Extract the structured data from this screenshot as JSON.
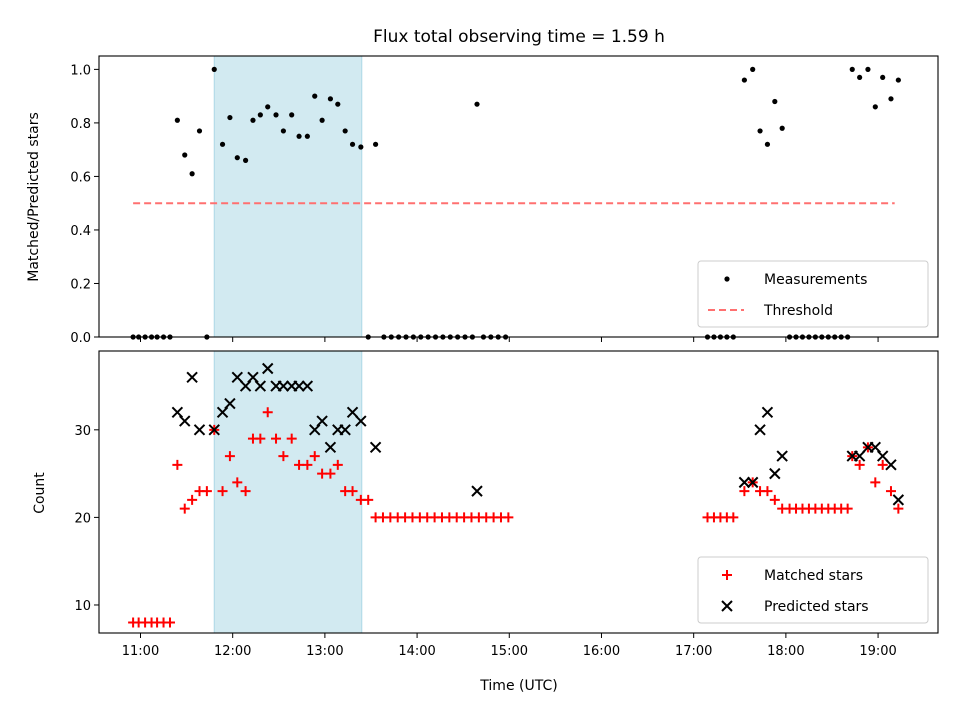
{
  "chart_data": [
    {
      "type": "scatter",
      "title": "Flux total observing time = 1.59 h",
      "ylabel": "Matched/Predicted stars",
      "xlabel": "",
      "xlim": [
        10.55,
        19.65
      ],
      "ylim": [
        0.0,
        1.05
      ],
      "yticks": [
        0.0,
        0.2,
        0.4,
        0.6,
        0.8,
        1.0
      ],
      "ytick_labels": [
        "0.0",
        "0.2",
        "0.4",
        "0.6",
        "0.8",
        "1.0"
      ],
      "shaded_region": [
        11.8,
        13.4
      ],
      "legend_position": "bottom-right",
      "series": [
        {
          "name": "Measurements",
          "marker": "dot",
          "color": "#000000",
          "points": [
            [
              10.92,
              0.0
            ],
            [
              10.98,
              0.0
            ],
            [
              11.05,
              0.0
            ],
            [
              11.12,
              0.0
            ],
            [
              11.18,
              0.0
            ],
            [
              11.25,
              0.0
            ],
            [
              11.32,
              0.0
            ],
            [
              11.4,
              0.81
            ],
            [
              11.48,
              0.68
            ],
            [
              11.56,
              0.61
            ],
            [
              11.64,
              0.77
            ],
            [
              11.72,
              0.0
            ],
            [
              11.8,
              1.0
            ],
            [
              11.89,
              0.72
            ],
            [
              11.97,
              0.82
            ],
            [
              12.05,
              0.67
            ],
            [
              12.14,
              0.66
            ],
            [
              12.22,
              0.81
            ],
            [
              12.3,
              0.83
            ],
            [
              12.38,
              0.86
            ],
            [
              12.47,
              0.83
            ],
            [
              12.55,
              0.77
            ],
            [
              12.64,
              0.83
            ],
            [
              12.72,
              0.75
            ],
            [
              12.81,
              0.75
            ],
            [
              12.89,
              0.9
            ],
            [
              12.97,
              0.81
            ],
            [
              13.06,
              0.89
            ],
            [
              13.14,
              0.87
            ],
            [
              13.22,
              0.77
            ],
            [
              13.3,
              0.72
            ],
            [
              13.39,
              0.71
            ],
            [
              13.47,
              0.0
            ],
            [
              13.55,
              0.72
            ],
            [
              13.64,
              0.0
            ],
            [
              13.72,
              0.0
            ],
            [
              13.8,
              0.0
            ],
            [
              13.88,
              0.0
            ],
            [
              13.96,
              0.0
            ],
            [
              14.04,
              0.0
            ],
            [
              14.12,
              0.0
            ],
            [
              14.2,
              0.0
            ],
            [
              14.28,
              0.0
            ],
            [
              14.36,
              0.0
            ],
            [
              14.44,
              0.0
            ],
            [
              14.52,
              0.0
            ],
            [
              14.6,
              0.0
            ],
            [
              14.65,
              0.87
            ],
            [
              14.72,
              0.0
            ],
            [
              14.8,
              0.0
            ],
            [
              14.88,
              0.0
            ],
            [
              14.96,
              0.0
            ],
            [
              17.15,
              0.0
            ],
            [
              17.22,
              0.0
            ],
            [
              17.29,
              0.0
            ],
            [
              17.36,
              0.0
            ],
            [
              17.43,
              0.0
            ],
            [
              17.55,
              0.96
            ],
            [
              17.64,
              1.0
            ],
            [
              17.72,
              0.77
            ],
            [
              17.8,
              0.72
            ],
            [
              17.88,
              0.88
            ],
            [
              17.96,
              0.78
            ],
            [
              18.04,
              0.0
            ],
            [
              18.11,
              0.0
            ],
            [
              18.18,
              0.0
            ],
            [
              18.25,
              0.0
            ],
            [
              18.32,
              0.0
            ],
            [
              18.39,
              0.0
            ],
            [
              18.46,
              0.0
            ],
            [
              18.53,
              0.0
            ],
            [
              18.6,
              0.0
            ],
            [
              18.67,
              0.0
            ],
            [
              18.72,
              1.0
            ],
            [
              18.8,
              0.97
            ],
            [
              18.89,
              1.0
            ],
            [
              18.97,
              0.86
            ],
            [
              19.05,
              0.97
            ],
            [
              19.14,
              0.89
            ],
            [
              19.22,
              0.96
            ]
          ]
        },
        {
          "name": "Threshold",
          "marker": "dashed-line",
          "color": "#ff7070",
          "points": [
            [
              10.92,
              0.5
            ],
            [
              19.18,
              0.5
            ]
          ]
        }
      ]
    },
    {
      "type": "scatter",
      "xlabel": "Time (UTC)",
      "ylabel": "Count",
      "xlim": [
        10.55,
        19.65
      ],
      "ylim": [
        6.8,
        39.0
      ],
      "yticks": [
        10,
        20,
        30
      ],
      "ytick_labels": [
        "10",
        "20",
        "30"
      ],
      "xticks": [
        11,
        12,
        13,
        14,
        15,
        16,
        17,
        18,
        19
      ],
      "xtick_labels": [
        "11:00",
        "12:00",
        "13:00",
        "14:00",
        "15:00",
        "16:00",
        "17:00",
        "18:00",
        "19:00"
      ],
      "shaded_region": [
        11.8,
        13.4
      ],
      "legend_position": "bottom-right",
      "series": [
        {
          "name": "Matched stars",
          "marker": "plus",
          "color": "#ff0000",
          "points": [
            [
              10.92,
              8
            ],
            [
              10.98,
              8
            ],
            [
              11.05,
              8
            ],
            [
              11.12,
              8
            ],
            [
              11.18,
              8
            ],
            [
              11.25,
              8
            ],
            [
              11.32,
              8
            ],
            [
              11.4,
              26
            ],
            [
              11.48,
              21
            ],
            [
              11.56,
              22
            ],
            [
              11.64,
              23
            ],
            [
              11.72,
              23
            ],
            [
              11.8,
              30
            ],
            [
              11.89,
              23
            ],
            [
              11.97,
              27
            ],
            [
              12.05,
              24
            ],
            [
              12.14,
              23
            ],
            [
              12.22,
              29
            ],
            [
              12.3,
              29
            ],
            [
              12.38,
              32
            ],
            [
              12.47,
              29
            ],
            [
              12.55,
              27
            ],
            [
              12.64,
              29
            ],
            [
              12.72,
              26
            ],
            [
              12.81,
              26
            ],
            [
              12.89,
              27
            ],
            [
              12.97,
              25
            ],
            [
              13.06,
              25
            ],
            [
              13.14,
              26
            ],
            [
              13.22,
              23
            ],
            [
              13.3,
              23
            ],
            [
              13.39,
              22
            ],
            [
              13.47,
              22
            ],
            [
              13.55,
              20
            ],
            [
              13.63,
              20
            ],
            [
              13.71,
              20
            ],
            [
              13.79,
              20
            ],
            [
              13.87,
              20
            ],
            [
              13.95,
              20
            ],
            [
              14.03,
              20
            ],
            [
              14.11,
              20
            ],
            [
              14.19,
              20
            ],
            [
              14.27,
              20
            ],
            [
              14.35,
              20
            ],
            [
              14.43,
              20
            ],
            [
              14.51,
              20
            ],
            [
              14.59,
              20
            ],
            [
              14.67,
              20
            ],
            [
              14.75,
              20
            ],
            [
              14.83,
              20
            ],
            [
              14.91,
              20
            ],
            [
              14.99,
              20
            ],
            [
              17.15,
              20
            ],
            [
              17.22,
              20
            ],
            [
              17.29,
              20
            ],
            [
              17.36,
              20
            ],
            [
              17.43,
              20
            ],
            [
              17.55,
              23
            ],
            [
              17.64,
              24
            ],
            [
              17.72,
              23
            ],
            [
              17.8,
              23
            ],
            [
              17.88,
              22
            ],
            [
              17.96,
              21
            ],
            [
              18.04,
              21
            ],
            [
              18.11,
              21
            ],
            [
              18.18,
              21
            ],
            [
              18.25,
              21
            ],
            [
              18.32,
              21
            ],
            [
              18.39,
              21
            ],
            [
              18.46,
              21
            ],
            [
              18.53,
              21
            ],
            [
              18.6,
              21
            ],
            [
              18.67,
              21
            ],
            [
              18.72,
              27
            ],
            [
              18.8,
              26
            ],
            [
              18.89,
              28
            ],
            [
              18.97,
              24
            ],
            [
              19.05,
              26
            ],
            [
              19.14,
              23
            ],
            [
              19.22,
              21
            ]
          ]
        },
        {
          "name": "Predicted stars",
          "marker": "x",
          "color": "#000000",
          "points": [
            [
              11.4,
              32
            ],
            [
              11.48,
              31
            ],
            [
              11.56,
              36
            ],
            [
              11.64,
              30
            ],
            [
              11.8,
              30
            ],
            [
              11.89,
              32
            ],
            [
              11.97,
              33
            ],
            [
              12.05,
              36
            ],
            [
              12.14,
              35
            ],
            [
              12.22,
              36
            ],
            [
              12.3,
              35
            ],
            [
              12.38,
              37
            ],
            [
              12.47,
              35
            ],
            [
              12.55,
              35
            ],
            [
              12.64,
              35
            ],
            [
              12.72,
              35
            ],
            [
              12.81,
              35
            ],
            [
              12.89,
              30
            ],
            [
              12.97,
              31
            ],
            [
              13.06,
              28
            ],
            [
              13.14,
              30
            ],
            [
              13.22,
              30
            ],
            [
              13.3,
              32
            ],
            [
              13.39,
              31
            ],
            [
              13.55,
              28
            ],
            [
              14.65,
              23
            ],
            [
              17.55,
              24
            ],
            [
              17.64,
              24
            ],
            [
              17.72,
              30
            ],
            [
              17.8,
              32
            ],
            [
              17.88,
              25
            ],
            [
              17.96,
              27
            ],
            [
              18.72,
              27
            ],
            [
              18.8,
              27
            ],
            [
              18.89,
              28
            ],
            [
              18.97,
              28
            ],
            [
              19.05,
              27
            ],
            [
              19.14,
              26
            ],
            [
              19.22,
              22
            ]
          ]
        }
      ]
    }
  ],
  "colors": {
    "shade": "#add8e6",
    "threshold": "#ff7070",
    "matched": "#ff0000",
    "predicted": "#000000"
  }
}
